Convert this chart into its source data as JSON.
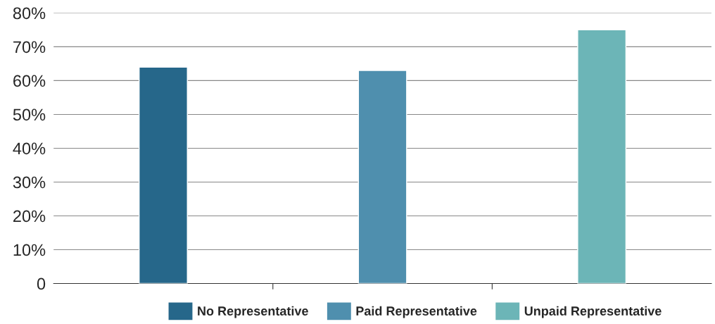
{
  "chart_data": {
    "type": "bar",
    "categories": [
      null,
      null,
      null
    ],
    "series": [
      {
        "name": "No Representative",
        "color": "#26678a",
        "values": [
          64,
          null,
          null
        ]
      },
      {
        "name": "Paid Representative",
        "color": "#4f8fae",
        "values": [
          null,
          63,
          null
        ]
      },
      {
        "name": "Unpaid Representative",
        "color": "#6cb5b7",
        "values": [
          null,
          null,
          75
        ]
      }
    ],
    "ylim": [
      0,
      80
    ],
    "yticks": [
      0,
      {
        "value": 10,
        "label": "10%"
      },
      {
        "value": 20,
        "label": "20%"
      },
      {
        "value": 30,
        "label": "30%"
      },
      {
        "value": 40,
        "label": "40%"
      },
      {
        "value": 50,
        "label": "50%"
      },
      {
        "value": 60,
        "label": "60%"
      },
      {
        "value": 70,
        "label": "70%"
      },
      {
        "value": 80,
        "label": "80%"
      }
    ],
    "grid": "y",
    "legend": "bottom"
  }
}
